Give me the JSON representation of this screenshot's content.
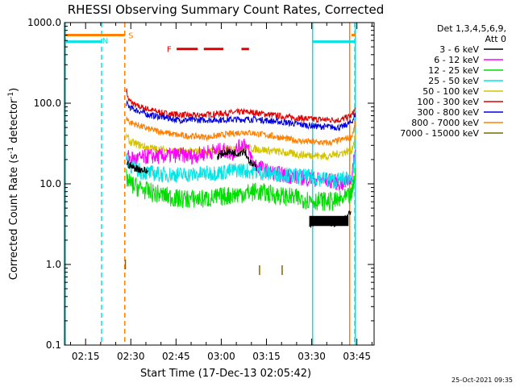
{
  "chart_data": {
    "type": "line",
    "title": "RHESSI Observing Summary Count Rates, Corrected",
    "xlabel": "Start Time (17-Dec-13 02:05:42)",
    "ylabel_main": "Corrected Count Rate (s",
    "ylabel_sup1": "-1",
    "ylabel_mid": " detector",
    "ylabel_sup2": "-1",
    "ylabel_end": ")",
    "y_scale": "log",
    "ylim": [
      0.1,
      1000
    ],
    "xlim_minutes": [
      2.3,
      105
    ],
    "x_ticks": [
      {
        "label": "02:15",
        "m": 9.3
      },
      {
        "label": "02:30",
        "m": 24.3
      },
      {
        "label": "02:45",
        "m": 39.3
      },
      {
        "label": "03:00",
        "m": 54.3
      },
      {
        "label": "03:15",
        "m": 69.3
      },
      {
        "label": "03:30",
        "m": 84.3
      },
      {
        "label": "03:45",
        "m": 99.3
      }
    ],
    "y_ticks": [
      {
        "label": "1000.0",
        "v": 1000
      },
      {
        "label": "100.0",
        "v": 100
      },
      {
        "label": "10.0",
        "v": 10
      },
      {
        "label": "1.0",
        "v": 1
      },
      {
        "label": "0.1",
        "v": 0.1
      }
    ],
    "legend": {
      "header1": "Det 1,3,4,5,6,9,",
      "header2": "Att 0",
      "entries": [
        {
          "name": "3 - 6 keV",
          "color": "#000000"
        },
        {
          "name": "6 - 12 keV",
          "color": "#ff00ff"
        },
        {
          "name": "12 - 25 keV",
          "color": "#00dd00"
        },
        {
          "name": "25 - 50 keV",
          "color": "#00e5e5"
        },
        {
          "name": "50 - 100 keV",
          "color": "#d4c400"
        },
        {
          "name": "100 - 300 keV",
          "color": "#e00000"
        },
        {
          "name": "300 - 800 keV",
          "color": "#0000e0"
        },
        {
          "name": "800 - 7000 keV",
          "color": "#ff8000"
        },
        {
          "name": "7000 - 15000 keV",
          "color": "#7a6a00"
        }
      ]
    },
    "series": [
      {
        "name": "100 - 300 keV",
        "color": "#e00000",
        "noise": 0.04,
        "x": [
          22.8,
          23.5,
          26,
          35,
          45,
          55,
          62,
          66,
          75,
          85,
          94,
          97.5,
          98.8
        ],
        "y": [
          150,
          110,
          93,
          75,
          70,
          75,
          78,
          76,
          68,
          63,
          62,
          70,
          85
        ]
      },
      {
        "name": "300 - 800 keV",
        "color": "#0000e0",
        "noise": 0.04,
        "x": [
          22.8,
          24,
          30,
          40,
          50,
          60,
          66,
          75,
          85,
          94,
          97.5,
          98.8
        ],
        "y": [
          100,
          88,
          72,
          62,
          62,
          63,
          63,
          58,
          52,
          50,
          58,
          72
        ]
      },
      {
        "name": "800 - 7000 keV",
        "color": "#ff8000",
        "noise": 0.04,
        "x": [
          22.8,
          24,
          30,
          40,
          50,
          58,
          62,
          70,
          80,
          90,
          97.5,
          98.8
        ],
        "y": [
          65,
          58,
          48,
          40,
          38,
          42,
          44,
          40,
          34,
          32,
          38,
          55
        ]
      },
      {
        "name": "50 - 100 keV",
        "color": "#d4c400",
        "noise": 0.05,
        "x": [
          22.8,
          24,
          30,
          40,
          50,
          58,
          62,
          70,
          80,
          90,
          97.5,
          98.8
        ],
        "y": [
          40,
          33,
          28,
          25,
          25,
          27,
          28,
          26,
          23,
          22,
          26,
          38
        ]
      },
      {
        "name": "6 - 12 keV",
        "color": "#ff00ff",
        "noise": 0.1,
        "x": [
          23,
          26,
          30,
          35,
          40,
          45,
          50,
          55,
          58,
          60,
          62,
          65,
          70,
          80,
          90,
          95,
          97.5,
          98.8
        ],
        "y": [
          22,
          20,
          22,
          22,
          23,
          22,
          25,
          26,
          24,
          28,
          33,
          18,
          14,
          12,
          11,
          10,
          12,
          25
        ]
      },
      {
        "name": "25 - 50 keV",
        "color": "#00e5e5",
        "noise": 0.1,
        "x": [
          22.8,
          24,
          28,
          35,
          45,
          55,
          60,
          66,
          75,
          85,
          92,
          97.5,
          98.8
        ],
        "y": [
          22,
          17,
          14,
          13,
          13,
          14,
          15,
          14,
          13,
          12,
          11,
          12,
          20
        ]
      },
      {
        "name": "12 - 25 keV",
        "color": "#00dd00",
        "noise": 0.12,
        "x": [
          22.8,
          24,
          30,
          40,
          50,
          60,
          66,
          75,
          85,
          92,
          97.5,
          98.8
        ],
        "y": [
          12,
          10,
          8,
          6.5,
          6.5,
          7.5,
          8,
          7,
          6.2,
          6,
          7,
          14
        ]
      },
      {
        "name": "3 - 6 keV",
        "color": "#000000",
        "noise": 0.05,
        "x": [
          23,
          25,
          28,
          30
        ],
        "y": [
          18,
          16,
          15,
          14
        ]
      },
      {
        "name": "3 - 6 keV",
        "color": "#000000",
        "noise": 0.05,
        "x": [
          53,
          56,
          60,
          62,
          64,
          66
        ],
        "y": [
          22,
          25,
          24,
          26,
          18,
          16
        ]
      },
      {
        "name": "3 - 6 keV",
        "color": "#000000",
        "noise": 0.05,
        "x": [
          83.5,
          88,
          92,
          95,
          97.3
        ],
        "y": [
          3.2,
          3.5,
          3.2,
          3.5,
          4.5
        ]
      }
    ],
    "black_bands": [
      {
        "x1": 83.5,
        "x2": 96.5,
        "y1": 3.0,
        "y2": 4.0
      }
    ],
    "olive_marks": [
      {
        "x": 22.5,
        "y": 1.0
      },
      {
        "x": 67,
        "y": 0.85
      },
      {
        "x": 74.5,
        "y": 0.85
      }
    ],
    "vlines": [
      {
        "x": 2.6,
        "color": "#00e5e5",
        "dash": false
      },
      {
        "x": 14.6,
        "color": "#00e5e5",
        "dash": true
      },
      {
        "x": 22.3,
        "color": "#ff8000",
        "dash": true
      },
      {
        "x": 84.6,
        "color": "#00e5e5",
        "dash": false
      },
      {
        "x": 96.9,
        "color": "#ff8000",
        "dash": false
      },
      {
        "x": 98.6,
        "color": "#ff8000",
        "dash": true
      },
      {
        "x": 98.8,
        "color": "#00e5e5",
        "dash": false
      }
    ],
    "top_bars": [
      {
        "x1": 2.6,
        "x2": 22.3,
        "y": 700,
        "color": "#ff8000"
      },
      {
        "x1": 2.6,
        "x2": 14.6,
        "y": 580,
        "color": "#00e5e5"
      },
      {
        "x1": 84.6,
        "x2": 98.8,
        "y": 580,
        "color": "#00e5e5"
      },
      {
        "x1": 97.5,
        "x2": 98.8,
        "y": 700,
        "color": "#ff8000"
      }
    ],
    "flare_dashes": [
      {
        "x1": 39.5,
        "x2": 46.5,
        "y": 470
      },
      {
        "x1": 48.5,
        "x2": 55,
        "y": 470
      },
      {
        "x1": 61,
        "x2": 63.5,
        "y": 470
      }
    ],
    "annotations": [
      {
        "text": "N",
        "x": 15.8,
        "y": 600,
        "color": "#00e5e5"
      },
      {
        "text": "S",
        "x": 24.3,
        "y": 700,
        "color": "#ff8000"
      },
      {
        "text": "F",
        "x": 37,
        "y": 475,
        "color": "#e00000"
      }
    ]
  },
  "footer": {
    "date": "25-Oct-2021 09:35"
  }
}
